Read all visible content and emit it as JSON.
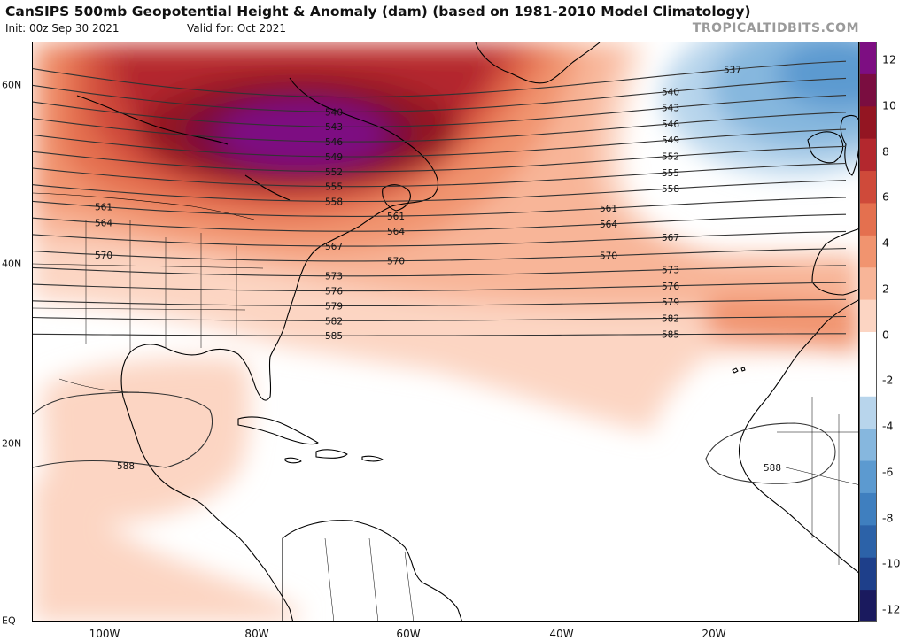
{
  "header": {
    "title": "CanSIPS 500mb Geopotential Height & Anomaly (dam) (based on 1981-2010 Model Climatology)",
    "init": "Init: 00z Sep 30 2021",
    "valid": "Valid for: Oct 2021",
    "brand": "TROPICALTIDBITS.COM"
  },
  "map": {
    "lat_labels": [
      "60N",
      "40N",
      "20N",
      "EQ"
    ],
    "lon_labels": [
      "100W",
      "80W",
      "60W",
      "40W",
      "20W"
    ],
    "contours": [
      {
        "value": "537",
        "labels": 1
      },
      {
        "value": "540",
        "labels": 2
      },
      {
        "value": "543",
        "labels": 2
      },
      {
        "value": "546",
        "labels": 2
      },
      {
        "value": "549",
        "labels": 2
      },
      {
        "value": "552",
        "labels": 2
      },
      {
        "value": "555",
        "labels": 2
      },
      {
        "value": "558",
        "labels": 2
      },
      {
        "value": "561",
        "labels": 3
      },
      {
        "value": "564",
        "labels": 3
      },
      {
        "value": "567",
        "labels": 2
      },
      {
        "value": "570",
        "labels": 3
      },
      {
        "value": "573",
        "labels": 2
      },
      {
        "value": "576",
        "labels": 2
      },
      {
        "value": "579",
        "labels": 2
      },
      {
        "value": "582",
        "labels": 2
      },
      {
        "value": "585",
        "labels": 2
      },
      {
        "value": "588",
        "labels": 2
      }
    ]
  },
  "colorbar": {
    "ticks": [
      "12",
      "10",
      "8",
      "6",
      "4",
      "2",
      "0",
      "-2",
      "-4",
      "-6",
      "-8",
      "-10",
      "-12"
    ],
    "colors": [
      "#1a1a5e",
      "#1e3f8a",
      "#2c62a8",
      "#3f7fbf",
      "#5c9ad0",
      "#86b7de",
      "#b8d5ec",
      "#ffffff",
      "#ffffff",
      "#fcd5c3",
      "#f8b598",
      "#f1946f",
      "#e4704f",
      "#cf4a3a",
      "#b3282e",
      "#931522",
      "#7a0d40",
      "#7d0e82"
    ]
  }
}
